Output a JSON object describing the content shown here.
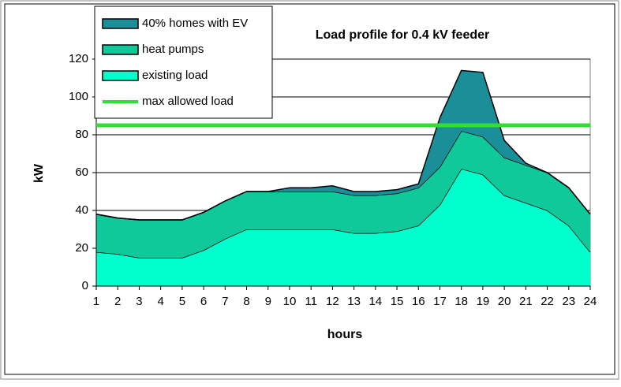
{
  "chart_data": {
    "type": "stacked-area",
    "title": "Load profile for 0.4 kV feeder",
    "x_label": "hours",
    "y_label": "kW",
    "x": [
      1,
      2,
      3,
      4,
      5,
      6,
      7,
      8,
      9,
      10,
      11,
      12,
      13,
      14,
      15,
      16,
      17,
      18,
      19,
      20,
      21,
      22,
      23,
      24
    ],
    "series": [
      {
        "name": "existing load",
        "color": "#00ffcc",
        "values": [
          18,
          17,
          15,
          15,
          15,
          19,
          25,
          30,
          30,
          30,
          30,
          30,
          28,
          28,
          29,
          32,
          43,
          62,
          59,
          48,
          44,
          40,
          32,
          18
        ]
      },
      {
        "name": "heat pumps",
        "color": "#10c99b",
        "values": [
          20,
          19,
          20,
          20,
          20,
          20,
          20,
          20,
          20,
          20,
          20,
          20,
          20,
          20,
          20,
          20,
          20,
          20,
          20,
          20,
          20,
          20,
          20,
          20
        ]
      },
      {
        "name": "40% homes with EV",
        "color": "#1a8f99",
        "values": [
          0,
          0,
          0,
          0,
          0,
          0,
          0,
          0,
          0,
          2,
          2,
          3,
          2,
          2,
          2,
          2,
          26,
          32,
          34,
          9,
          1,
          0,
          0,
          0
        ]
      }
    ],
    "reference_lines": [
      {
        "name": "max allowed load",
        "value": 85,
        "color": "#33dd33"
      }
    ],
    "xlim": [
      1,
      24
    ],
    "xticks": [
      1,
      2,
      3,
      4,
      5,
      6,
      7,
      8,
      9,
      10,
      11,
      12,
      13,
      14,
      15,
      16,
      17,
      18,
      19,
      20,
      21,
      22,
      23,
      24
    ],
    "ylim": [
      0,
      120
    ],
    "yticks": [
      0,
      20,
      40,
      60,
      80,
      100,
      120
    ],
    "grid": true
  }
}
